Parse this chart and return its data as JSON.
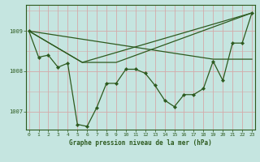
{
  "title": "Graphe pression niveau de la mer (hPa)",
  "bg_color": "#c5e5e0",
  "grid_color": "#d4aaaa",
  "line_color": "#2d5a1e",
  "xlim": [
    -0.3,
    23.3
  ],
  "ylim": [
    1006.55,
    1009.65
  ],
  "yticks": [
    1007,
    1008,
    1009
  ],
  "xticks": [
    0,
    1,
    2,
    3,
    4,
    5,
    6,
    7,
    8,
    9,
    10,
    11,
    12,
    13,
    14,
    15,
    16,
    17,
    18,
    19,
    20,
    21,
    22,
    23
  ],
  "series_with_markers": {
    "x": [
      0,
      1,
      2,
      3,
      4,
      5,
      6,
      7,
      8,
      9,
      10,
      11,
      12,
      13,
      14,
      15,
      16,
      17,
      18,
      19,
      20,
      21,
      22,
      23
    ],
    "y": [
      1009.0,
      1008.35,
      1008.4,
      1008.1,
      1008.2,
      1006.68,
      1006.63,
      1007.1,
      1007.7,
      1007.7,
      1008.05,
      1008.05,
      1007.95,
      1007.65,
      1007.28,
      1007.12,
      1007.42,
      1007.42,
      1007.57,
      1008.25,
      1007.77,
      1008.7,
      1008.7,
      1009.45
    ]
  },
  "flat_line": {
    "x": [
      0,
      19,
      23
    ],
    "y": [
      1009.0,
      1008.3,
      1008.3
    ]
  },
  "upper_triangle": {
    "x": [
      0,
      5.5,
      23
    ],
    "y": [
      1009.0,
      1008.22,
      1009.45
    ]
  },
  "lower_triangle": {
    "x": [
      0,
      5.5,
      9,
      23
    ],
    "y": [
      1009.0,
      1008.22,
      1008.22,
      1009.45
    ]
  }
}
